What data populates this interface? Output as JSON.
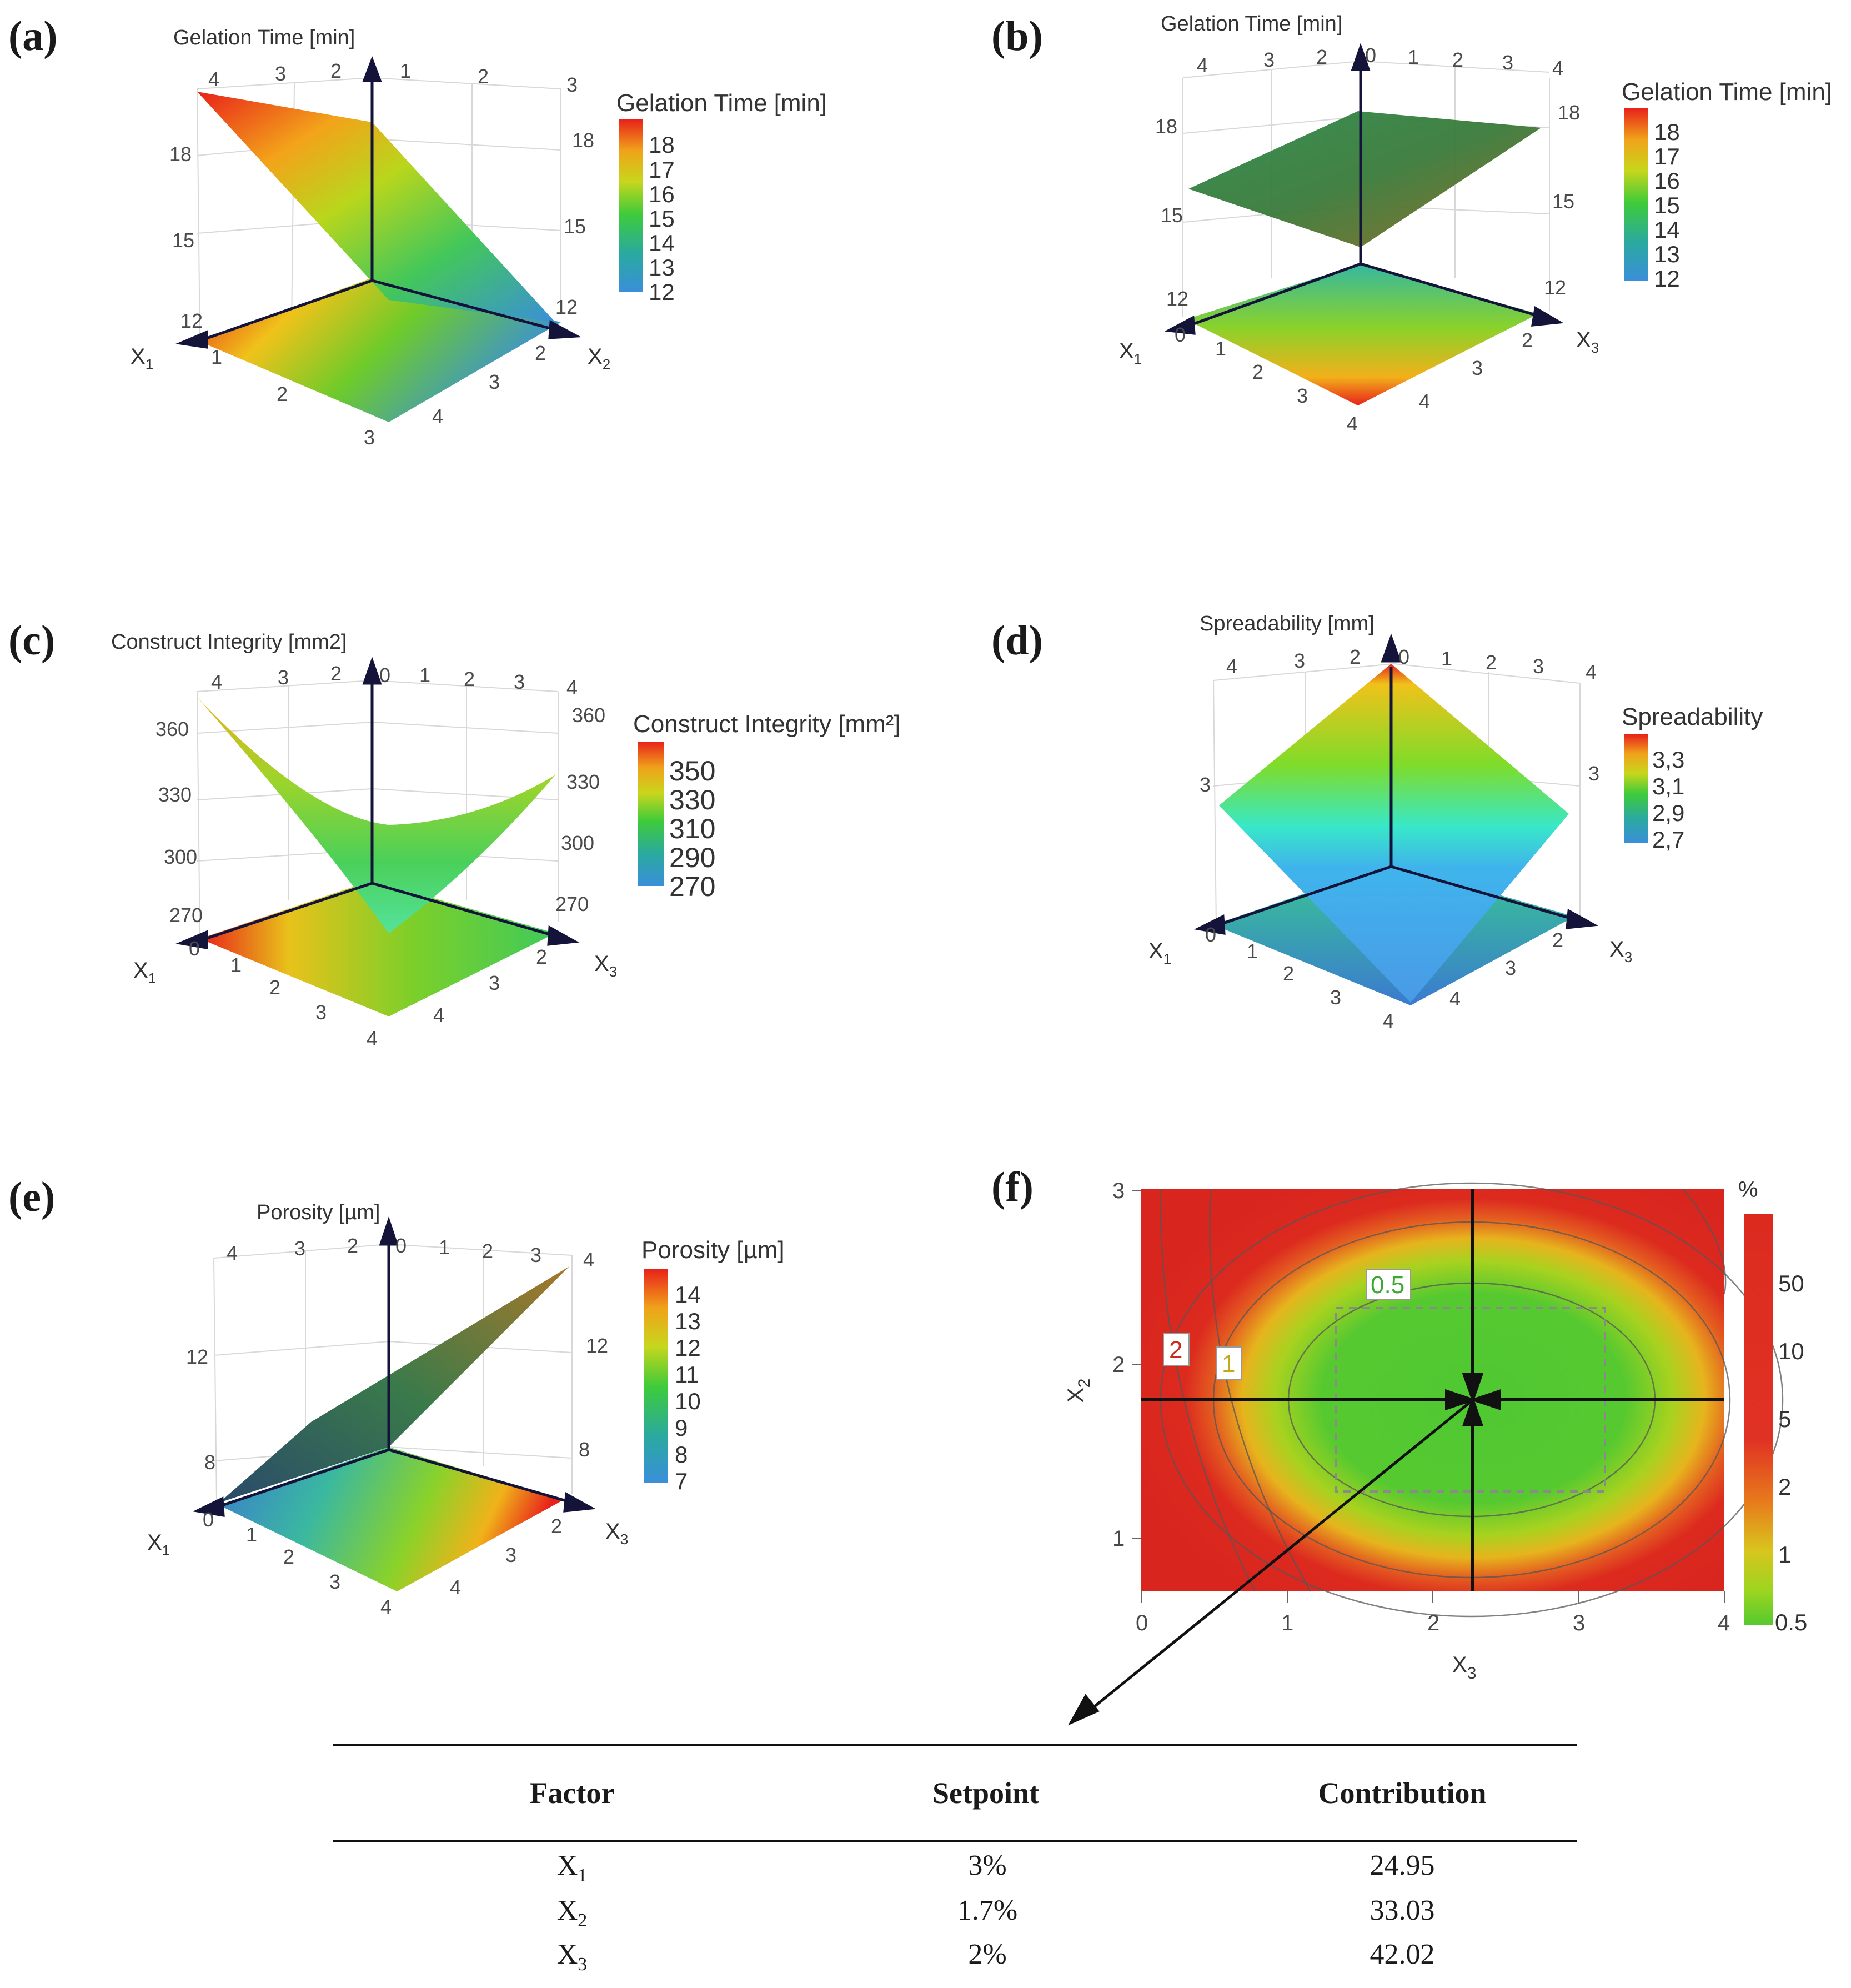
{
  "panels": {
    "a": {
      "label": "(a)",
      "z_title": "Gelation Time [min]",
      "cb_title": "Gelation Time [min]",
      "cb_ticks": [
        "18",
        "17",
        "16",
        "15",
        "14",
        "13",
        "12"
      ],
      "x_axis": "X",
      "x_sub": "1",
      "y_axis": "X",
      "y_sub": "2",
      "left_z": [
        "18",
        "15",
        "12"
      ],
      "right_z": [
        "18",
        "15",
        "12"
      ],
      "top_left": [
        "4",
        "3",
        "2"
      ],
      "top_right": [
        "1",
        "2",
        "3"
      ],
      "bot_left": [
        "1",
        "2",
        "3"
      ],
      "bot_right": [
        "2",
        "3",
        "4"
      ]
    },
    "b": {
      "label": "(b)",
      "z_title": "Gelation Time [min]",
      "cb_title": "Gelation Time [min]",
      "cb_ticks": [
        "18",
        "17",
        "16",
        "15",
        "14",
        "13",
        "12"
      ],
      "x_axis": "X",
      "x_sub": "1",
      "y_axis": "X",
      "y_sub": "3",
      "left_z": [
        "18",
        "15",
        "12"
      ],
      "right_z": [
        "18",
        "15",
        "12"
      ],
      "top_left": [
        "4",
        "3",
        "2"
      ],
      "top_zero": "0",
      "top_right": [
        "1",
        "2",
        "3",
        "4"
      ],
      "bot_zero": "0",
      "bot_left": [
        "1",
        "2",
        "3",
        "4"
      ],
      "bot_right": [
        "2",
        "3",
        "4"
      ]
    },
    "c": {
      "label": "(c)",
      "z_title": "Construct Integrity [mm2]",
      "cb_title": "Construct Integrity [mm²]",
      "cb_ticks": [
        "350",
        "330",
        "310",
        "290",
        "270"
      ],
      "x_axis": "X",
      "x_sub": "1",
      "y_axis": "X",
      "y_sub": "3",
      "left_z": [
        "360",
        "330",
        "300",
        "270"
      ],
      "right_z": [
        "360",
        "330",
        "300",
        "270"
      ],
      "top_left": [
        "4",
        "3",
        "2"
      ],
      "top_zero": "0",
      "top_right": [
        "1",
        "2",
        "3",
        "4"
      ],
      "bot_zero": "0",
      "bot_left": [
        "1",
        "2",
        "3",
        "4"
      ],
      "bot_right": [
        "2",
        "3",
        "4"
      ]
    },
    "d": {
      "label": "(d)",
      "z_title": "Spreadability [mm]",
      "cb_title": "Spreadability",
      "cb_ticks": [
        "3,3",
        "3,1",
        "2,9",
        "2,7"
      ],
      "x_axis": "X",
      "x_sub": "1",
      "y_axis": "X",
      "y_sub": "3",
      "left_z": [
        "3"
      ],
      "right_z": [
        "3"
      ],
      "top_left": [
        "4",
        "3",
        "2"
      ],
      "top_zero": "0",
      "top_right": [
        "1",
        "2",
        "3",
        "4"
      ],
      "bot_zero": "0",
      "bot_left": [
        "1",
        "2",
        "3",
        "4"
      ],
      "bot_right": [
        "2",
        "3",
        "4"
      ]
    },
    "e": {
      "label": "(e)",
      "z_title": "Porosity [µm]",
      "cb_title": "Porosity [µm]",
      "cb_ticks": [
        "14",
        "13",
        "12",
        "11",
        "10",
        "9",
        "8",
        "7"
      ],
      "x_axis": "X",
      "x_sub": "1",
      "y_axis": "X",
      "y_sub": "3",
      "left_z": [
        "12",
        "8"
      ],
      "right_z": [
        "12",
        "8"
      ],
      "top_left": [
        "4",
        "3",
        "2"
      ],
      "top_zero": "0",
      "top_right": [
        "1",
        "2",
        "3",
        "4"
      ],
      "bot_zero": "0",
      "bot_left": [
        "1",
        "2",
        "3",
        "4"
      ],
      "bot_right": [
        "2",
        "3",
        "4"
      ]
    },
    "f": {
      "label": "(f)",
      "x_axis": "X",
      "x_sub": "3",
      "y_axis": "X",
      "y_sub": "2",
      "x_ticks": [
        "0",
        "1",
        "2",
        "3",
        "4"
      ],
      "y_ticks": [
        "3",
        "2",
        "1"
      ],
      "cb_unit": "%",
      "cb_ticks": [
        "50",
        "10",
        "5",
        "2",
        "1",
        "0.5"
      ],
      "contour_labels": [
        "0.5",
        "1",
        "2"
      ]
    }
  },
  "table": {
    "headers": [
      "Factor",
      "Setpoint",
      "Contribution"
    ],
    "rows": [
      {
        "factor": "X",
        "sub": "1",
        "setpoint": "3%",
        "contribution": "24.95"
      },
      {
        "factor": "X",
        "sub": "2",
        "setpoint": "1.7%",
        "contribution": "33.03"
      },
      {
        "factor": "X",
        "sub": "3",
        "setpoint": "2%",
        "contribution": "42.02"
      }
    ]
  },
  "chart_data": [
    {
      "type": "surface",
      "panel": "a",
      "zlabel": "Gelation Time [min]",
      "xlabel": "X1",
      "ylabel": "X2",
      "x_range": [
        0,
        4
      ],
      "y_range": [
        0,
        4
      ],
      "zlim": [
        12,
        18
      ],
      "colorbar_range": [
        12,
        18
      ]
    },
    {
      "type": "surface",
      "panel": "b",
      "zlabel": "Gelation Time [min]",
      "xlabel": "X1",
      "ylabel": "X3",
      "x_range": [
        0,
        4
      ],
      "y_range": [
        0,
        4
      ],
      "zlim": [
        12,
        18
      ],
      "colorbar_range": [
        12,
        18
      ]
    },
    {
      "type": "surface",
      "panel": "c",
      "zlabel": "Construct Integrity [mm2]",
      "xlabel": "X1",
      "ylabel": "X3",
      "x_range": [
        0,
        4
      ],
      "y_range": [
        0,
        4
      ],
      "zlim": [
        270,
        360
      ],
      "colorbar_range": [
        270,
        350
      ]
    },
    {
      "type": "surface",
      "panel": "d",
      "zlabel": "Spreadability [mm]",
      "xlabel": "X1",
      "ylabel": "X3",
      "x_range": [
        0,
        4
      ],
      "y_range": [
        0,
        4
      ],
      "zlim": [
        2.7,
        3.3
      ],
      "colorbar_range": [
        2.7,
        3.3
      ]
    },
    {
      "type": "surface",
      "panel": "e",
      "zlabel": "Porosity [µm]",
      "xlabel": "X1",
      "ylabel": "X3",
      "x_range": [
        0,
        4
      ],
      "y_range": [
        0,
        4
      ],
      "zlim": [
        7,
        14
      ],
      "colorbar_range": [
        7,
        14
      ]
    },
    {
      "type": "heatmap",
      "panel": "f",
      "xlabel": "X3",
      "ylabel": "X2",
      "xlim": [
        0,
        4
      ],
      "ylim": [
        0.75,
        3
      ],
      "colorbar_unit": "%",
      "colorbar_ticks": [
        0.5,
        1,
        2,
        5,
        10,
        50
      ],
      "contours": [
        0.5,
        1,
        2
      ],
      "optimum": {
        "X3": 2.3,
        "X2": 1.8
      },
      "design_space": {
        "X3": [
          1.35,
          3.2
        ],
        "X2": [
          1.28,
          2.3
        ]
      }
    }
  ]
}
